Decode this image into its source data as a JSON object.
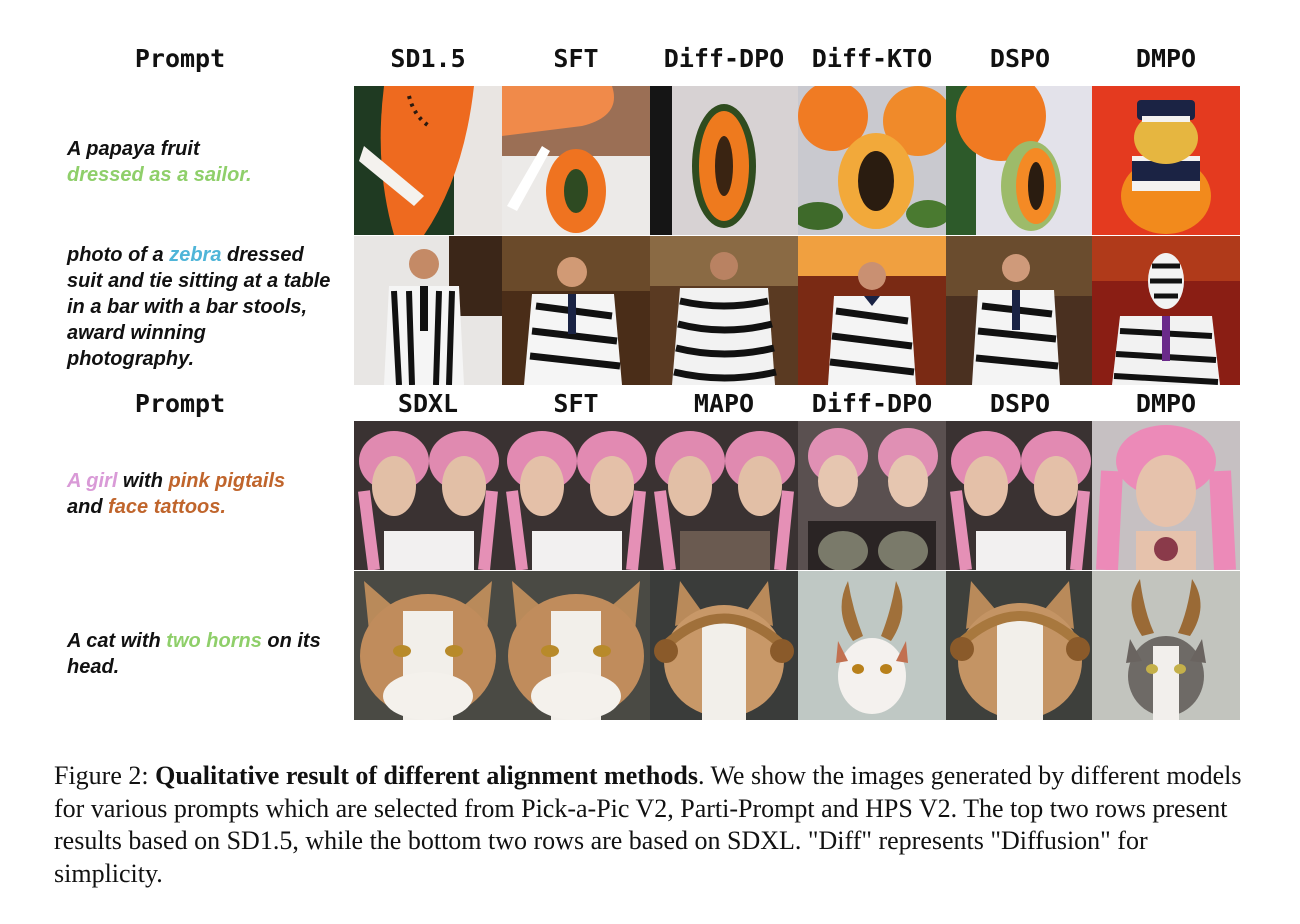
{
  "figure": {
    "top_headers": [
      "Prompt",
      "SD1.5",
      "SFT",
      "Diff-DPO",
      "Diff-KTO",
      "DSPO",
      "DMPO"
    ],
    "bottom_headers": [
      "Prompt",
      "SDXL",
      "SFT",
      "MAPO",
      "Diff-DPO",
      "DSPO",
      "DMPO"
    ],
    "prompts": [
      {
        "line1": "A papaya fruit",
        "line2_highlight": "dressed as a sailor."
      },
      {
        "p1": "photo of a ",
        "highlight": "zebra",
        "p2": " dressed suit and tie sitting at a table in a bar with a bar stools, award winning photography."
      },
      {
        "h1": "A girl",
        "t1": " with ",
        "h2": "pink pigtails",
        "t2": "and ",
        "h3": "face tattoos."
      },
      {
        "t1": "A cat with ",
        "h1": "two horns",
        "t2": " on its head."
      }
    ],
    "colors": {
      "green": "#8fcf6a",
      "blue": "#4fb5d8",
      "pink": "#d99ad7",
      "orange": "#c0652c"
    }
  },
  "caption": {
    "label": "Figure 2: ",
    "bold_title": "Qualitative result of different alignment methods",
    "body": ". We show the images generated by different models for various prompts which are selected from Pick-a-Pic V2, Parti-Prompt and HPS V2. The top two rows present results based on SD1.5, while the bottom two rows are based on SDXL. \"Diff\" represents \"Diffusion\" for simplicity."
  }
}
